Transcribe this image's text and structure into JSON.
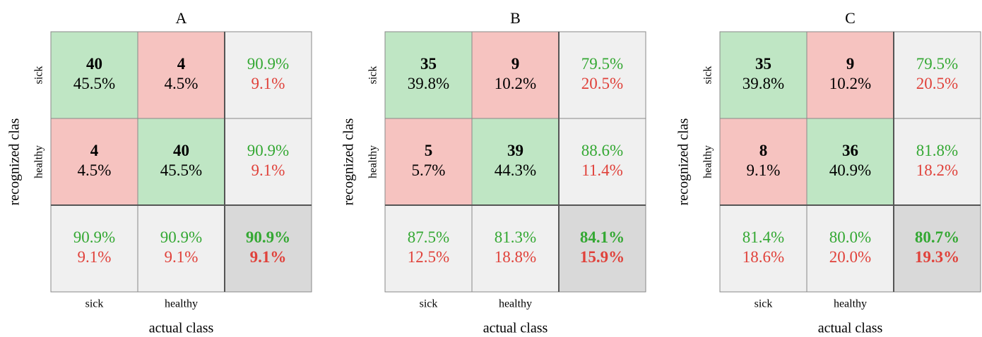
{
  "panels": [
    {
      "title": "A",
      "y_label": "recognized clas",
      "x_label": "actual class",
      "row_labels": [
        "sick",
        "healthy"
      ],
      "col_labels": [
        "sick",
        "healthy"
      ],
      "cells": [
        [
          {
            "count": 40,
            "percent": "45.5%"
          },
          {
            "count": 4,
            "percent": "4.5%"
          }
        ],
        [
          {
            "count": 4,
            "percent": "4.5%"
          },
          {
            "count": 40,
            "percent": "45.5%"
          }
        ]
      ],
      "row_summary": [
        {
          "correct": "90.9%",
          "wrong": "9.1%"
        },
        {
          "correct": "90.9%",
          "wrong": "9.1%"
        }
      ],
      "col_summary": [
        {
          "correct": "90.9%",
          "wrong": "9.1%"
        },
        {
          "correct": "90.9%",
          "wrong": "9.1%"
        }
      ],
      "total": {
        "correct": "90.9%",
        "wrong": "9.1%"
      }
    },
    {
      "title": "B",
      "y_label": "recognized clas",
      "x_label": "actual class",
      "row_labels": [
        "sick",
        "healthy"
      ],
      "col_labels": [
        "sick",
        "healthy"
      ],
      "cells": [
        [
          {
            "count": 35,
            "percent": "39.8%"
          },
          {
            "count": 9,
            "percent": "10.2%"
          }
        ],
        [
          {
            "count": 5,
            "percent": "5.7%"
          },
          {
            "count": 39,
            "percent": "44.3%"
          }
        ]
      ],
      "row_summary": [
        {
          "correct": "79.5%",
          "wrong": "20.5%"
        },
        {
          "correct": "88.6%",
          "wrong": "11.4%"
        }
      ],
      "col_summary": [
        {
          "correct": "87.5%",
          "wrong": "12.5%"
        },
        {
          "correct": "81.3%",
          "wrong": "18.8%"
        }
      ],
      "total": {
        "correct": "84.1%",
        "wrong": "15.9%"
      }
    },
    {
      "title": "C",
      "y_label": "recognized clas",
      "x_label": "actual class",
      "row_labels": [
        "sick",
        "healthy"
      ],
      "col_labels": [
        "sick",
        "healthy"
      ],
      "cells": [
        [
          {
            "count": 35,
            "percent": "39.8%"
          },
          {
            "count": 9,
            "percent": "10.2%"
          }
        ],
        [
          {
            "count": 8,
            "percent": "9.1%"
          },
          {
            "count": 36,
            "percent": "40.9%"
          }
        ]
      ],
      "row_summary": [
        {
          "correct": "79.5%",
          "wrong": "20.5%"
        },
        {
          "correct": "81.8%",
          "wrong": "18.2%"
        }
      ],
      "col_summary": [
        {
          "correct": "81.4%",
          "wrong": "18.6%"
        },
        {
          "correct": "80.0%",
          "wrong": "20.0%"
        }
      ],
      "total": {
        "correct": "80.7%",
        "wrong": "19.3%"
      }
    }
  ]
}
